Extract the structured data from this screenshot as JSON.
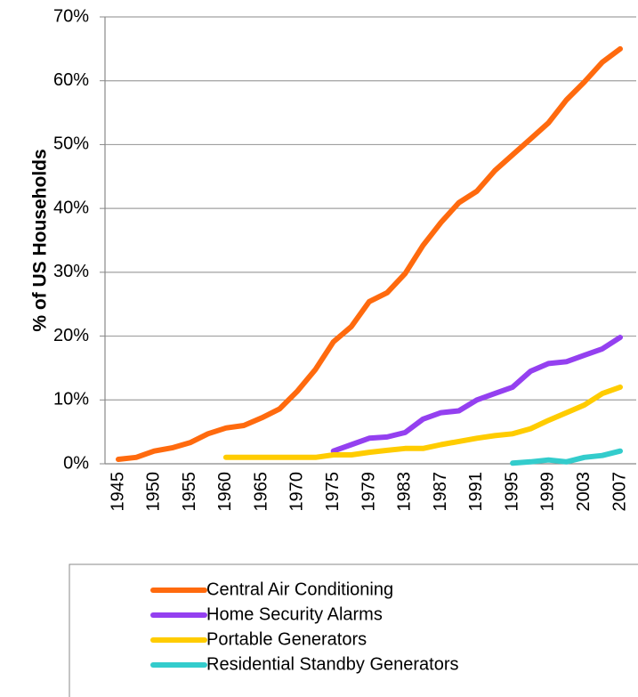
{
  "chart_data": {
    "type": "line",
    "y_label": "% of US Households",
    "categories": [
      "1945",
      null,
      "1950",
      null,
      "1955",
      null,
      "1960",
      null,
      "1965",
      null,
      "1970",
      null,
      "1975",
      null,
      "1979",
      null,
      "1983",
      null,
      "1987",
      null,
      "1991",
      null,
      "1995",
      null,
      "1999",
      null,
      "2003",
      null,
      "2007"
    ],
    "series": [
      {
        "name": "Central Air Conditioning",
        "color": "#ff6a0e",
        "values": [
          0.7,
          1,
          2,
          2.5,
          3.3,
          4.7,
          5.6,
          6,
          7.2,
          8.6,
          11.4,
          14.8,
          19.1,
          21.5,
          25.4,
          26.8,
          29.8,
          34.2,
          37.8,
          40.9,
          42.7,
          45.9,
          48.4,
          50.9,
          53.4,
          57,
          59.8,
          62.9,
          65
        ]
      },
      {
        "name": "Home Security Alarms",
        "color": "#9440f0",
        "values": [
          null,
          null,
          null,
          null,
          null,
          null,
          null,
          null,
          null,
          null,
          null,
          null,
          2,
          3,
          4,
          4.2,
          4.9,
          7,
          8,
          8.3,
          10,
          11,
          12,
          14.5,
          15.7,
          16,
          17,
          18,
          19.8
        ]
      },
      {
        "name": "Portable Generators",
        "color": "#ffcc00",
        "values": [
          null,
          null,
          null,
          null,
          null,
          null,
          1,
          1,
          1,
          1,
          1,
          1,
          1.4,
          1.4,
          1.8,
          2.1,
          2.4,
          2.4,
          3,
          3.5,
          4,
          4.4,
          4.7,
          5.5,
          6.8,
          8,
          9.2,
          11,
          12
        ]
      },
      {
        "name": "Residential Standby Generators",
        "color": "#33cccc",
        "values": [
          null,
          null,
          null,
          null,
          null,
          null,
          null,
          null,
          null,
          null,
          null,
          null,
          null,
          null,
          null,
          null,
          null,
          null,
          null,
          null,
          null,
          null,
          0.1,
          0.3,
          0.6,
          0.3,
          1,
          1.3,
          2
        ]
      }
    ],
    "ylim": [
      0,
      70
    ],
    "yticks": [
      {
        "value": 0,
        "label": "0%"
      },
      {
        "value": 10,
        "label": "10%"
      },
      {
        "value": 20,
        "label": "20%"
      },
      {
        "value": 30,
        "label": "30%"
      },
      {
        "value": 40,
        "label": "40%"
      },
      {
        "value": 50,
        "label": "50%"
      },
      {
        "value": 60,
        "label": "60%"
      },
      {
        "value": 70,
        "label": "70%"
      }
    ],
    "grid": true
  }
}
